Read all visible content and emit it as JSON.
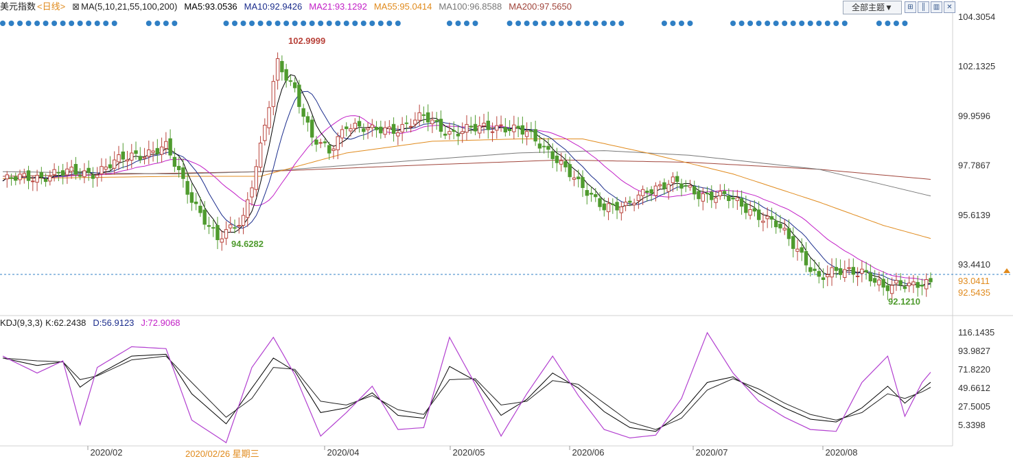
{
  "header": {
    "symbol": "美元指数",
    "period": "<日线>",
    "ma_params": "MA(5,10,21,55,100,200)",
    "ma_values": [
      {
        "label": "MA5:93.0536",
        "color": "#000000"
      },
      {
        "label": "MA10:92.9426",
        "color": "#1a2c8c"
      },
      {
        "label": "MA21:93.1292",
        "color": "#c21fc7"
      },
      {
        "label": "MA55:95.0414",
        "color": "#e08a1c"
      },
      {
        "label": "MA100:96.8588",
        "color": "#777777"
      },
      {
        "label": "MA200:97.5650",
        "color": "#a0443a"
      }
    ],
    "theme_button": "全部主题▼",
    "toolbar_icons": [
      "grid-icon",
      "bars-icon",
      "candle-icon",
      "close-icon"
    ]
  },
  "kdj_header": {
    "name": "KDJ(9,3,3)",
    "k": "K:62.2438",
    "d": "D:56.9123",
    "j": "J:72.9068"
  },
  "colors": {
    "up": "#b8423a",
    "down": "#4f9b2e",
    "ma5": "#000000",
    "ma10": "#1a2c8c",
    "ma21": "#c21fc7",
    "ma55": "#e08a1c",
    "ma100": "#777777",
    "ma200": "#a0443a",
    "dots": "#2f7fc4",
    "current_line": "#2f7fc4"
  },
  "chart_data": [
    {
      "type": "candlestick",
      "price_axis_ticks": [
        "104.3054",
        "102.1325",
        "99.9596",
        "97.7867",
        "95.6139",
        "93.4410"
      ],
      "ylim": [
        91.8,
        104.6
      ],
      "annotations": {
        "high": "102.9999",
        "low_early": "94.6282",
        "low_late": "92.1210",
        "current_price": "93.0411",
        "secondary_price": "92.5435"
      },
      "x_labels": [
        "2020/02",
        "2020/04",
        "2020/05",
        "2020/06",
        "2020/07",
        "2020/08"
      ],
      "cursor_label": "2020/02/26 星期三",
      "close_path": [
        [
          0,
          97.5
        ],
        [
          12,
          97.8
        ],
        [
          22,
          97.9
        ],
        [
          30,
          98.6
        ],
        [
          38,
          98.9
        ],
        [
          40,
          98.2
        ],
        [
          44,
          96.8
        ],
        [
          50,
          94.9
        ],
        [
          56,
          96.0
        ],
        [
          60,
          98.9
        ],
        [
          64,
          102.5
        ],
        [
          68,
          101.5
        ],
        [
          72,
          99.3
        ],
        [
          76,
          98.7
        ],
        [
          80,
          100.0
        ],
        [
          86,
          99.6
        ],
        [
          92,
          99.8
        ],
        [
          98,
          100.2
        ],
        [
          104,
          99.6
        ],
        [
          110,
          99.7
        ],
        [
          116,
          99.9
        ],
        [
          122,
          99.5
        ],
        [
          128,
          98.7
        ],
        [
          134,
          97.3
        ],
        [
          140,
          96.5
        ],
        [
          145,
          96.3
        ],
        [
          150,
          97.2
        ],
        [
          156,
          97.4
        ],
        [
          162,
          97.0
        ],
        [
          168,
          96.8
        ],
        [
          174,
          96.3
        ],
        [
          180,
          95.6
        ],
        [
          186,
          94.4
        ],
        [
          190,
          93.3
        ],
        [
          196,
          93.7
        ],
        [
          200,
          93.7
        ],
        [
          205,
          92.8
        ],
        [
          209,
          93.2
        ],
        [
          213,
          93.1
        ],
        [
          216,
          93.0
        ]
      ],
      "ma_anchor_values": {
        "ma55": [
          [
            0,
            97.6
          ],
          [
            40,
            97.7
          ],
          [
            60,
            97.7
          ],
          [
            80,
            98.7
          ],
          [
            100,
            99.2
          ],
          [
            120,
            99.3
          ],
          [
            135,
            99.3
          ],
          [
            150,
            98.7
          ],
          [
            170,
            97.8
          ],
          [
            190,
            96.6
          ],
          [
            205,
            95.6
          ],
          [
            216,
            95.04
          ]
        ],
        "ma100": [
          [
            0,
            97.9
          ],
          [
            40,
            97.8
          ],
          [
            60,
            97.9
          ],
          [
            90,
            98.3
          ],
          [
            120,
            98.7
          ],
          [
            140,
            98.8
          ],
          [
            160,
            98.6
          ],
          [
            190,
            98.0
          ],
          [
            216,
            96.86
          ]
        ],
        "ma200": [
          [
            0,
            97.7
          ],
          [
            60,
            97.9
          ],
          [
            100,
            98.2
          ],
          [
            130,
            98.4
          ],
          [
            160,
            98.3
          ],
          [
            190,
            98.0
          ],
          [
            216,
            97.57
          ]
        ]
      }
    },
    {
      "type": "line",
      "name": "KDJ(9,3,3)",
      "axis_ticks": [
        "116.1435",
        "93.9827",
        "71.8220",
        "49.6612",
        "27.5005",
        "5.3398"
      ],
      "ylim": [
        -4,
        120
      ],
      "series": [
        {
          "name": "K",
          "values_at": [
            [
              0,
              88
            ],
            [
              8,
              80
            ],
            [
              14,
              84
            ],
            [
              18,
              57
            ],
            [
              22,
              70
            ],
            [
              30,
              90
            ],
            [
              38,
              92
            ],
            [
              44,
              50
            ],
            [
              52,
              18
            ],
            [
              58,
              56
            ],
            [
              63,
              88
            ],
            [
              68,
              74
            ],
            [
              74,
              30
            ],
            [
              80,
              35
            ],
            [
              86,
              51
            ],
            [
              92,
              27
            ],
            [
              98,
              24
            ],
            [
              104,
              79
            ],
            [
              110,
              64
            ],
            [
              116,
              27
            ],
            [
              122,
              44
            ],
            [
              128,
              72
            ],
            [
              134,
              56
            ],
            [
              140,
              31
            ],
            [
              146,
              14
            ],
            [
              152,
              10
            ],
            [
              158,
              30
            ],
            [
              164,
              62
            ],
            [
              170,
              68
            ],
            [
              176,
              50
            ],
            [
              182,
              35
            ],
            [
              188,
              23
            ],
            [
              194,
              20
            ],
            [
              200,
              35
            ],
            [
              206,
              58
            ],
            [
              210,
              40
            ],
            [
              214,
              55
            ],
            [
              216,
              62.24
            ]
          ]
        },
        {
          "name": "D",
          "values_at": [
            [
              0,
              88
            ],
            [
              8,
              85
            ],
            [
              14,
              84
            ],
            [
              18,
              65
            ],
            [
              22,
              69
            ],
            [
              30,
              86
            ],
            [
              38,
              90
            ],
            [
              44,
              62
            ],
            [
              52,
              25
            ],
            [
              58,
              45
            ],
            [
              63,
              78
            ],
            [
              68,
              76
            ],
            [
              74,
              42
            ],
            [
              80,
              38
            ],
            [
              86,
              48
            ],
            [
              92,
              33
            ],
            [
              98,
              28
            ],
            [
              104,
              65
            ],
            [
              110,
              66
            ],
            [
              116,
              38
            ],
            [
              122,
              42
            ],
            [
              128,
              64
            ],
            [
              134,
              60
            ],
            [
              140,
              40
            ],
            [
              146,
              20
            ],
            [
              152,
              12
            ],
            [
              158,
              24
            ],
            [
              164,
              54
            ],
            [
              170,
              66
            ],
            [
              176,
              55
            ],
            [
              182,
              40
            ],
            [
              188,
              28
            ],
            [
              194,
              22
            ],
            [
              200,
              30
            ],
            [
              206,
              50
            ],
            [
              210,
              45
            ],
            [
              214,
              52
            ],
            [
              216,
              56.91
            ]
          ]
        },
        {
          "name": "J",
          "values_at": [
            [
              0,
              90
            ],
            [
              8,
              72
            ],
            [
              14,
              85
            ],
            [
              18,
              17
            ],
            [
              22,
              78
            ],
            [
              30,
              100
            ],
            [
              38,
              98
            ],
            [
              44,
              22
            ],
            [
              52,
              -2
            ],
            [
              58,
              78
            ],
            [
              63,
              110
            ],
            [
              68,
              70
            ],
            [
              74,
              5
            ],
            [
              80,
              30
            ],
            [
              86,
              58
            ],
            [
              92,
              12
            ],
            [
              98,
              14
            ],
            [
              104,
              110
            ],
            [
              110,
              60
            ],
            [
              116,
              5
            ],
            [
              122,
              50
            ],
            [
              128,
              90
            ],
            [
              134,
              48
            ],
            [
              140,
              12
            ],
            [
              146,
              3
            ],
            [
              152,
              6
            ],
            [
              158,
              45
            ],
            [
              164,
              115
            ],
            [
              170,
              72
            ],
            [
              176,
              42
            ],
            [
              182,
              25
            ],
            [
              188,
              12
            ],
            [
              194,
              10
            ],
            [
              200,
              62
            ],
            [
              206,
              90
            ],
            [
              210,
              26
            ],
            [
              214,
              62
            ],
            [
              216,
              72.91
            ]
          ]
        }
      ]
    }
  ]
}
